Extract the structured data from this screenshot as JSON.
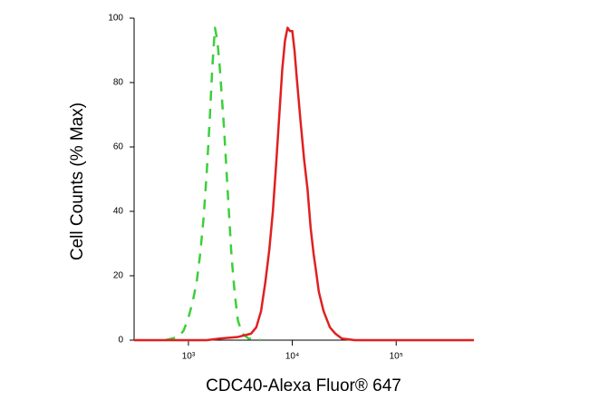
{
  "chart_data": {
    "type": "line",
    "xlabel": "CDC40-Alexa Fluor® 647",
    "ylabel": "Cell Counts (% Max)",
    "xscale": "log",
    "xlim": [
      300,
      560000
    ],
    "ylim": [
      0,
      100
    ],
    "xticks": [
      {
        "value": 1000,
        "label": "10³"
      },
      {
        "value": 10000,
        "label": "10⁴"
      },
      {
        "value": 100000,
        "label": "10⁵"
      }
    ],
    "yticks": [
      0,
      20,
      40,
      60,
      80,
      100
    ],
    "series": [
      {
        "color": "#3ccf3c",
        "dash": true,
        "x": [
          600,
          800,
          900,
          1000,
          1100,
          1200,
          1300,
          1400,
          1500,
          1600,
          1700,
          1800,
          1900,
          2000,
          2200,
          2400,
          2600,
          2800,
          3000,
          3300,
          3800,
          5000
        ],
        "values": [
          0,
          1,
          3,
          7,
          12,
          18,
          27,
          38,
          52,
          68,
          85,
          97,
          93,
          85,
          66,
          45,
          26,
          14,
          6,
          2,
          0.5,
          0
        ]
      },
      {
        "color": "#e02020",
        "dash": false,
        "x": [
          300,
          1500,
          2000,
          3000,
          4000,
          4500,
          5000,
          5500,
          6000,
          6500,
          7000,
          7500,
          8000,
          8500,
          9000,
          9500,
          10000,
          10500,
          11000,
          12000,
          13000,
          14000,
          15000,
          16000,
          17000,
          18000,
          20000,
          23000,
          26000,
          30000,
          40000,
          560000
        ],
        "values": [
          0,
          0,
          0.5,
          1,
          2,
          4,
          9,
          18,
          28,
          40,
          55,
          70,
          84,
          93,
          97,
          96,
          96,
          90,
          82,
          68,
          56,
          47,
          35,
          27,
          21,
          15,
          9,
          4,
          2,
          0.5,
          0,
          0
        ]
      }
    ]
  }
}
